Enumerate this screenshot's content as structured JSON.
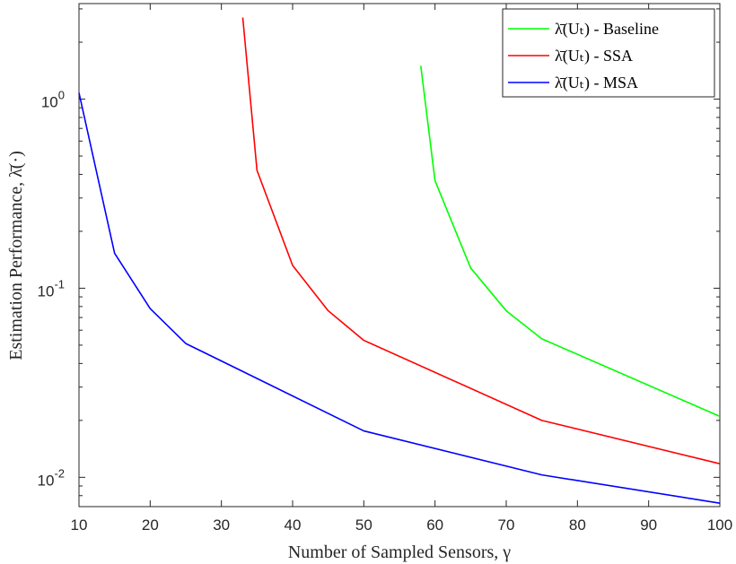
{
  "chart_data": {
    "type": "line",
    "y_scale": "log",
    "xlim": [
      10,
      100
    ],
    "ylim": [
      0.007,
      3.2
    ],
    "xlabel": "Number of Sampled Sensors, γ",
    "ylabel": "Estimation Performance, λ̄(·)",
    "xticks": [
      "10",
      "20",
      "30",
      "40",
      "50",
      "60",
      "70",
      "80",
      "90",
      "100"
    ],
    "yticks": [
      {
        "value": 1,
        "mantissa": "10",
        "exponent": "0"
      },
      {
        "value": 0.1,
        "mantissa": "10",
        "exponent": "-1"
      },
      {
        "value": 0.01,
        "mantissa": "10",
        "exponent": "-2"
      }
    ],
    "grid": false,
    "legend_position": "top-right",
    "series": [
      {
        "name": "λ̄(Uₜ) - Baseline",
        "color": "#00ff00",
        "x": [
          58,
          60,
          65,
          70,
          75,
          100
        ],
        "y": [
          1.5,
          0.37,
          0.128,
          0.076,
          0.054,
          0.021
        ]
      },
      {
        "name": "λ̄(Uₜ) - SSA",
        "color": "#ff0000",
        "x": [
          33,
          35,
          40,
          45,
          50,
          75,
          100
        ],
        "y": [
          2.7,
          0.42,
          0.132,
          0.076,
          0.053,
          0.02,
          0.0118
        ]
      },
      {
        "name": "λ̄(Uₜ) - MSA",
        "color": "#0000ff",
        "x": [
          10,
          15,
          20,
          25,
          50,
          75,
          100
        ],
        "y": [
          1.08,
          0.153,
          0.078,
          0.051,
          0.0176,
          0.0103,
          0.0073
        ]
      }
    ]
  }
}
